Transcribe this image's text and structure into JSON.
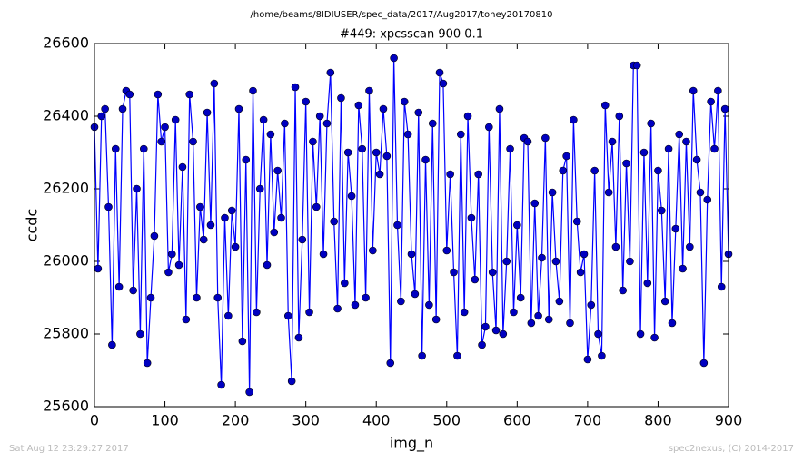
{
  "chart_data": {
    "type": "line",
    "title": "/home/beams/8IDIUSER/spec_data/2017/Aug2017/toney20170810",
    "subtitle": "#449: xpcsscan 900 0.1",
    "x_label": "img_n",
    "y_label": "ccdc",
    "footer_left": "Sat Aug 12 23:29:27 2017",
    "footer_right": "spec2nexus, (C) 2014-2017",
    "xlim": [
      0,
      900
    ],
    "ylim": [
      25600,
      26600
    ],
    "xticks": [
      0,
      100,
      200,
      300,
      400,
      500,
      600,
      700,
      800,
      900
    ],
    "yticks": [
      25600,
      25800,
      26000,
      26200,
      26400,
      26600
    ],
    "grid": false,
    "x": [
      0,
      5,
      10,
      15,
      20,
      25,
      30,
      35,
      40,
      45,
      50,
      55,
      60,
      65,
      70,
      75,
      80,
      85,
      90,
      95,
      100,
      105,
      110,
      115,
      120,
      125,
      130,
      135,
      140,
      145,
      150,
      155,
      160,
      165,
      170,
      175,
      180,
      185,
      190,
      195,
      200,
      205,
      210,
      215,
      220,
      225,
      230,
      235,
      240,
      245,
      250,
      255,
      260,
      265,
      270,
      275,
      280,
      285,
      290,
      295,
      300,
      305,
      310,
      315,
      320,
      325,
      330,
      335,
      340,
      345,
      350,
      355,
      360,
      365,
      370,
      375,
      380,
      385,
      390,
      395,
      400,
      405,
      410,
      415,
      420,
      425,
      430,
      435,
      440,
      445,
      450,
      455,
      460,
      465,
      470,
      475,
      480,
      485,
      490,
      495,
      500,
      505,
      510,
      515,
      520,
      525,
      530,
      535,
      540,
      545,
      550,
      555,
      560,
      565,
      570,
      575,
      580,
      585,
      590,
      595,
      600,
      605,
      610,
      615,
      620,
      625,
      630,
      635,
      640,
      645,
      650,
      655,
      660,
      665,
      670,
      675,
      680,
      685,
      690,
      695,
      700,
      705,
      710,
      715,
      720,
      725,
      730,
      735,
      740,
      745,
      750,
      755,
      760,
      765,
      770,
      775,
      780,
      785,
      790,
      795,
      800,
      805,
      810,
      815,
      820,
      825,
      830,
      835,
      840,
      845,
      850,
      855,
      860,
      865,
      870,
      875,
      880,
      885,
      890,
      895,
      900
    ],
    "series": [
      {
        "name": "ccdc",
        "color": "#0000ff",
        "marker_color": "#0000c0",
        "values": [
          26370,
          25980,
          26400,
          26420,
          26150,
          25770,
          26310,
          25930,
          26420,
          26470,
          26460,
          25920,
          26200,
          25800,
          26310,
          25720,
          25900,
          26070,
          26460,
          26330,
          26370,
          25970,
          26020,
          26390,
          25990,
          26260,
          25840,
          26460,
          26330,
          25900,
          26150,
          26060,
          26410,
          26100,
          26490,
          25900,
          25660,
          26120,
          25850,
          26140,
          26040,
          26420,
          25780,
          26280,
          25640,
          26470,
          25860,
          26200,
          26390,
          25990,
          26350,
          26080,
          26250,
          26120,
          26380,
          25850,
          25670,
          26480,
          25790,
          26060,
          26440,
          25860,
          26330,
          26150,
          26400,
          26020,
          26380,
          26520,
          26110,
          25870,
          26450,
          25940,
          26300,
          26180,
          25880,
          26430,
          26310,
          25900,
          26470,
          26030,
          26300,
          26240,
          26420,
          26290,
          25720,
          26560,
          26100,
          25890,
          26440,
          26350,
          26020,
          25910,
          26410,
          25740,
          26280,
          25880,
          26380,
          25840,
          26520,
          26490,
          26030,
          26240,
          25970,
          25740,
          26350,
          25860,
          26400,
          26120,
          25950,
          26240,
          25770,
          25820,
          26370,
          25970,
          25810,
          26420,
          25800,
          26000,
          26310,
          25860,
          26100,
          25900,
          26340,
          26330,
          25830,
          26160,
          25850,
          26010,
          26340,
          25840,
          26190,
          26000,
          25890,
          26250,
          26290,
          25830,
          26390,
          26110,
          25970,
          26020,
          25730,
          25880,
          26250,
          25800,
          25740,
          26430,
          26190,
          26330,
          26040,
          26400,
          25920,
          26270,
          26000,
          26540,
          26540,
          25800,
          26300,
          25940,
          26380,
          25790,
          26250,
          26140,
          25890,
          26310,
          25830,
          26090,
          26350,
          25980,
          26330,
          26040,
          26470,
          26280,
          26190,
          25720,
          26170,
          26440,
          26310,
          26470,
          25930,
          26420,
          26020
        ]
      }
    ]
  }
}
